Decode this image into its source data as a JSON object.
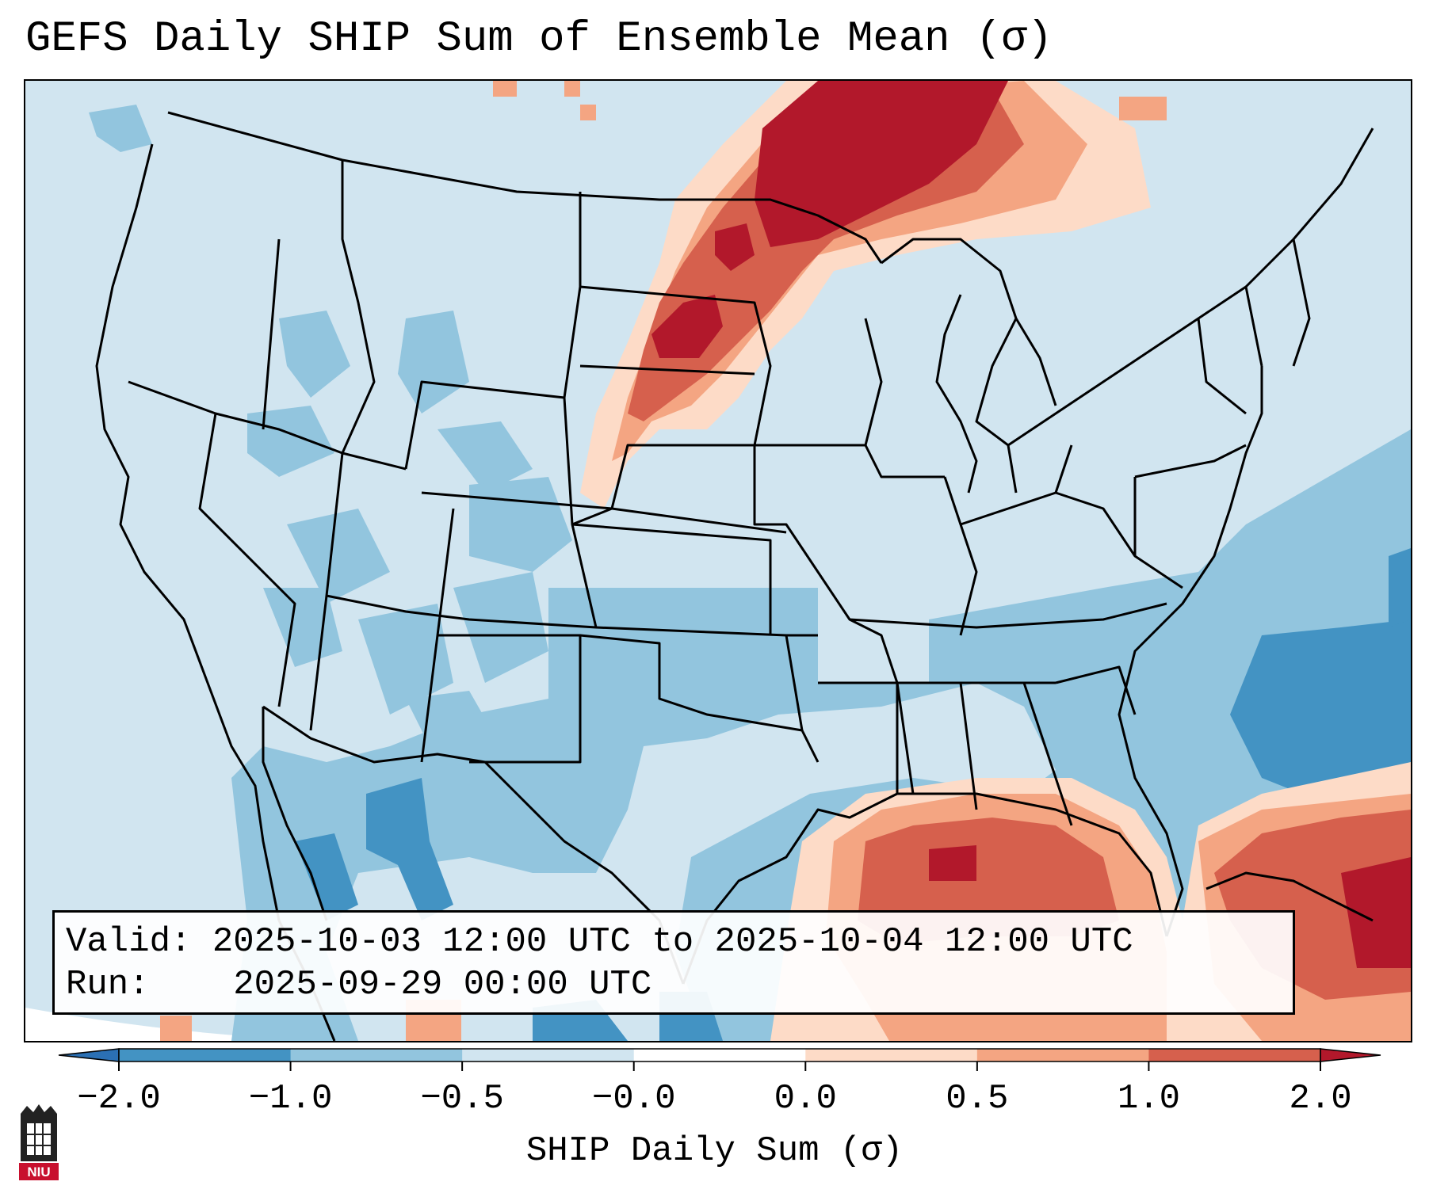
{
  "title": "GEFS Daily SHIP Sum of Ensemble Mean (σ)",
  "info": {
    "valid_label": "Valid:",
    "valid_value": "2025-10-03 12:00 UTC to 2025-10-04 12:00 UTC",
    "run_label": "Run:",
    "run_value": "2025-09-29 00:00 UTC"
  },
  "colorbar": {
    "label": "SHIP Daily Sum (σ)",
    "ticks": [
      "−2.0",
      "−1.0",
      "−0.5",
      "−0.0",
      "0.0",
      "0.5",
      "1.0",
      "2.0"
    ],
    "colors": [
      "#2b70b4",
      "#4393c3",
      "#92c5de",
      "#d1e5f0",
      "#ffffff",
      "#fddbc7",
      "#f4a582",
      "#d6604d",
      "#b2182b"
    ],
    "extend": "both"
  },
  "map": {
    "region": "CONUS",
    "ocean_color": "#d1e5f0",
    "outline_color": "#000000"
  },
  "logo": {
    "text": "NIU",
    "icon": "niu-seal-icon",
    "color": "#c8102e"
  }
}
